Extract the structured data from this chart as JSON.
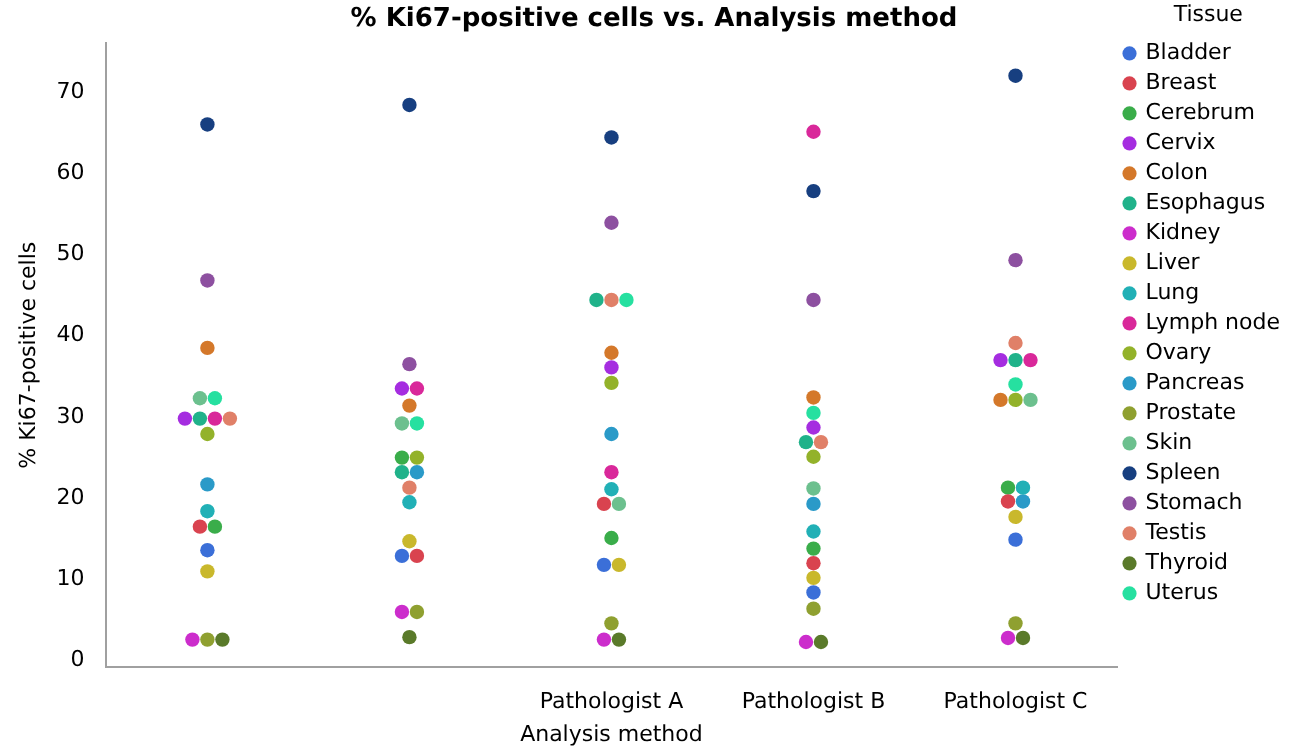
{
  "chart_data": {
    "type": "scatter",
    "title": "% Ki67-positive cells vs. Analysis method",
    "xlabel": "Analysis method",
    "ylabel": "% Ki67-positive cells",
    "legend_title": "Tissue",
    "legend": "right",
    "marker": "circle",
    "grid": false,
    "categories": [
      null,
      null,
      "Pathologist A",
      "Pathologist B",
      "Pathologist C"
    ],
    "ylim": [
      -0.8,
      76
    ],
    "yticks": [
      0,
      10,
      20,
      30,
      40,
      50,
      60,
      70
    ],
    "series": [
      {
        "name": "Bladder",
        "color": "#3b6fd8",
        "values": [
          13.6,
          12.9,
          11.8,
          8.4,
          14.9
        ]
      },
      {
        "name": "Breast",
        "color": "#d9434f",
        "values": [
          16.5,
          12.9,
          19.3,
          12.0,
          19.6
        ]
      },
      {
        "name": "Cerebrum",
        "color": "#3aad4a",
        "values": [
          16.5,
          25.0,
          15.1,
          13.8,
          21.3
        ]
      },
      {
        "name": "Cervix",
        "color": "#a52de0",
        "values": [
          29.8,
          33.5,
          36.1,
          28.7,
          37.0
        ]
      },
      {
        "name": "Colon",
        "color": "#d4782a",
        "values": [
          38.5,
          31.4,
          37.9,
          32.4,
          32.1
        ]
      },
      {
        "name": "Esophagus",
        "color": "#20b28a",
        "values": [
          29.8,
          23.2,
          44.4,
          26.9,
          37.0
        ]
      },
      {
        "name": "Kidney",
        "color": "#cc2dcc",
        "values": [
          2.6,
          6.0,
          2.6,
          2.3,
          2.8
        ]
      },
      {
        "name": "Liver",
        "color": "#c9b82c",
        "values": [
          11.0,
          14.7,
          11.8,
          10.2,
          17.7
        ]
      },
      {
        "name": "Lung",
        "color": "#21b0b6",
        "values": [
          18.4,
          19.5,
          21.1,
          15.9,
          21.3
        ]
      },
      {
        "name": "Lymph node",
        "color": "#d9289a",
        "values": [
          29.8,
          33.5,
          23.2,
          65.1,
          37.0
        ]
      },
      {
        "name": "Ovary",
        "color": "#93b22a",
        "values": [
          27.9,
          25.0,
          34.2,
          25.1,
          32.1
        ]
      },
      {
        "name": "Pancreas",
        "color": "#2a9ac8",
        "values": [
          21.7,
          23.2,
          27.9,
          19.3,
          19.6
        ]
      },
      {
        "name": "Prostate",
        "color": "#8fa030",
        "values": [
          2.6,
          6.0,
          4.6,
          6.4,
          4.6
        ]
      },
      {
        "name": "Skin",
        "color": "#6cc08e",
        "values": [
          32.3,
          29.2,
          19.3,
          21.2,
          32.1
        ]
      },
      {
        "name": "Spleen",
        "color": "#173f80",
        "values": [
          66.0,
          68.4,
          64.4,
          57.8,
          72.0
        ]
      },
      {
        "name": "Stomach",
        "color": "#8d50a0",
        "values": [
          46.8,
          36.5,
          53.9,
          44.4,
          49.3
        ]
      },
      {
        "name": "Testis",
        "color": "#e08068",
        "values": [
          29.8,
          21.3,
          44.4,
          26.9,
          39.1
        ]
      },
      {
        "name": "Thyroid",
        "color": "#5a7a2a",
        "values": [
          2.6,
          2.9,
          2.6,
          2.3,
          2.8
        ]
      },
      {
        "name": "Uterus",
        "color": "#26e0a0",
        "values": [
          32.3,
          29.2,
          44.4,
          30.5,
          34.0
        ]
      }
    ]
  }
}
